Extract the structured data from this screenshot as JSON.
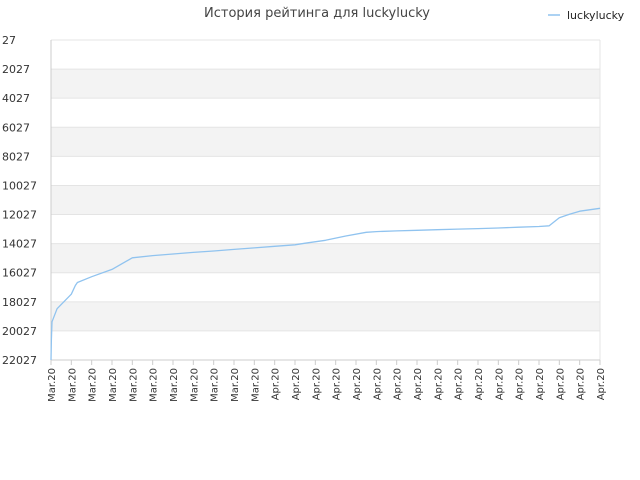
{
  "chart_data": {
    "type": "line",
    "title": "История рейтинга для luckylucky",
    "legend": {
      "position": "top-right",
      "entries": [
        "luckylucky"
      ]
    },
    "colors": {
      "line": "#90c3ef",
      "band": "#f3f3f3",
      "grid": "#e4e4e4",
      "axis": "#cccccc"
    },
    "grid": true,
    "y_inverted": true,
    "ylim": [
      27,
      22027
    ],
    "y_ticks": [
      {
        "value": 27,
        "label": "27"
      },
      {
        "value": 2027,
        "label": "2027"
      },
      {
        "value": 4027,
        "label": "4027"
      },
      {
        "value": 6027,
        "label": "6027"
      },
      {
        "value": 8027,
        "label": "8027"
      },
      {
        "value": 10027,
        "label": "10027"
      },
      {
        "value": 12027,
        "label": "12027"
      },
      {
        "value": 14027,
        "label": "14027"
      },
      {
        "value": 16027,
        "label": "16027"
      },
      {
        "value": 18027,
        "label": "18027"
      },
      {
        "value": 20027,
        "label": "20027"
      },
      {
        "value": 22027,
        "label": "22027"
      }
    ],
    "x_tick_labels": [
      "Mar.20",
      "Mar.20",
      "Mar.20",
      "Mar.20",
      "Mar.20",
      "Mar.20",
      "Mar.20",
      "Mar.20",
      "Mar.20",
      "Mar.20",
      "Mar.20",
      "Apr.20",
      "Apr.20",
      "Apr.20",
      "Apr.20",
      "Apr.20",
      "Apr.20",
      "Apr.20",
      "Apr.20",
      "Apr.20",
      "Apr.20",
      "Apr.20",
      "Apr.20",
      "Apr.20",
      "Apr.20",
      "Apr.20",
      "Apr.20",
      "Apr.20"
    ],
    "series": [
      {
        "name": "luckylucky",
        "points": [
          [
            0.0,
            22027
          ],
          [
            0.02,
            20600
          ],
          [
            0.05,
            19400
          ],
          [
            0.3,
            18500
          ],
          [
            1.0,
            17500
          ],
          [
            1.2,
            16900
          ],
          [
            1.3,
            16700
          ],
          [
            2.0,
            16300
          ],
          [
            3.0,
            15800
          ],
          [
            4.0,
            15000
          ],
          [
            5.0,
            14850
          ],
          [
            6.0,
            14740
          ],
          [
            7.0,
            14630
          ],
          [
            8.0,
            14530
          ],
          [
            9.0,
            14420
          ],
          [
            10.0,
            14320
          ],
          [
            11.0,
            14210
          ],
          [
            12.0,
            14110
          ],
          [
            12.5,
            14000
          ],
          [
            13.5,
            13800
          ],
          [
            14.5,
            13500
          ],
          [
            15.5,
            13250
          ],
          [
            16.0,
            13200
          ],
          [
            17.0,
            13150
          ],
          [
            18.0,
            13110
          ],
          [
            19.0,
            13070
          ],
          [
            20.0,
            13030
          ],
          [
            21.0,
            12990
          ],
          [
            22.0,
            12950
          ],
          [
            23.0,
            12900
          ],
          [
            24.0,
            12850
          ],
          [
            24.5,
            12800
          ],
          [
            25.0,
            12250
          ],
          [
            25.5,
            12000
          ],
          [
            26.0,
            11800
          ],
          [
            27.0,
            11600
          ]
        ]
      }
    ]
  }
}
